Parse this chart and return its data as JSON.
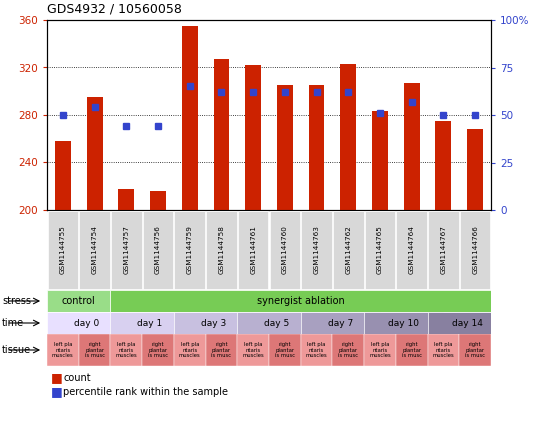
{
  "title": "GDS4932 / 10560058",
  "samples": [
    "GSM1144755",
    "GSM1144754",
    "GSM1144757",
    "GSM1144756",
    "GSM1144759",
    "GSM1144758",
    "GSM1144761",
    "GSM1144760",
    "GSM1144763",
    "GSM1144762",
    "GSM1144765",
    "GSM1144764",
    "GSM1144767",
    "GSM1144766"
  ],
  "bar_heights": [
    258,
    295,
    218,
    216,
    355,
    327,
    322,
    305,
    305,
    323,
    283,
    307,
    275,
    268
  ],
  "bar_base": 200,
  "blue_dot_percentile": [
    50,
    54,
    44,
    44,
    65,
    62,
    62,
    62,
    62,
    62,
    51,
    57,
    50,
    50
  ],
  "ylim_left": [
    200,
    360
  ],
  "ylim_right": [
    0,
    100
  ],
  "yticks_left": [
    200,
    240,
    280,
    320,
    360
  ],
  "yticks_right": [
    0,
    25,
    50,
    75,
    100
  ],
  "ytick_labels_right": [
    "0",
    "25",
    "50",
    "75",
    "100%"
  ],
  "bar_color": "#cc2200",
  "blue_color": "#3344cc",
  "axis_left_color": "#cc2200",
  "axis_right_color": "#3344cc",
  "chart_bg": "#ffffff",
  "fig_bg": "#ffffff",
  "stress_control_color": "#99dd88",
  "stress_ablation_color": "#77cc55",
  "time_colors": [
    "#e8e0ff",
    "#d8d0f0",
    "#c8c0e0",
    "#b8b0d0",
    "#a8a0c0",
    "#9890b0",
    "#8880a0"
  ],
  "tissue_left_color": "#ee9999",
  "tissue_right_color": "#dd7777",
  "tissue_left_text": "left pla\nntaris\nmuscles",
  "tissue_right_text": "right\nplantar\nis musc",
  "legend_count_color": "#cc2200",
  "legend_pct_color": "#3344cc",
  "title_fontsize": 9,
  "bar_width": 0.5
}
